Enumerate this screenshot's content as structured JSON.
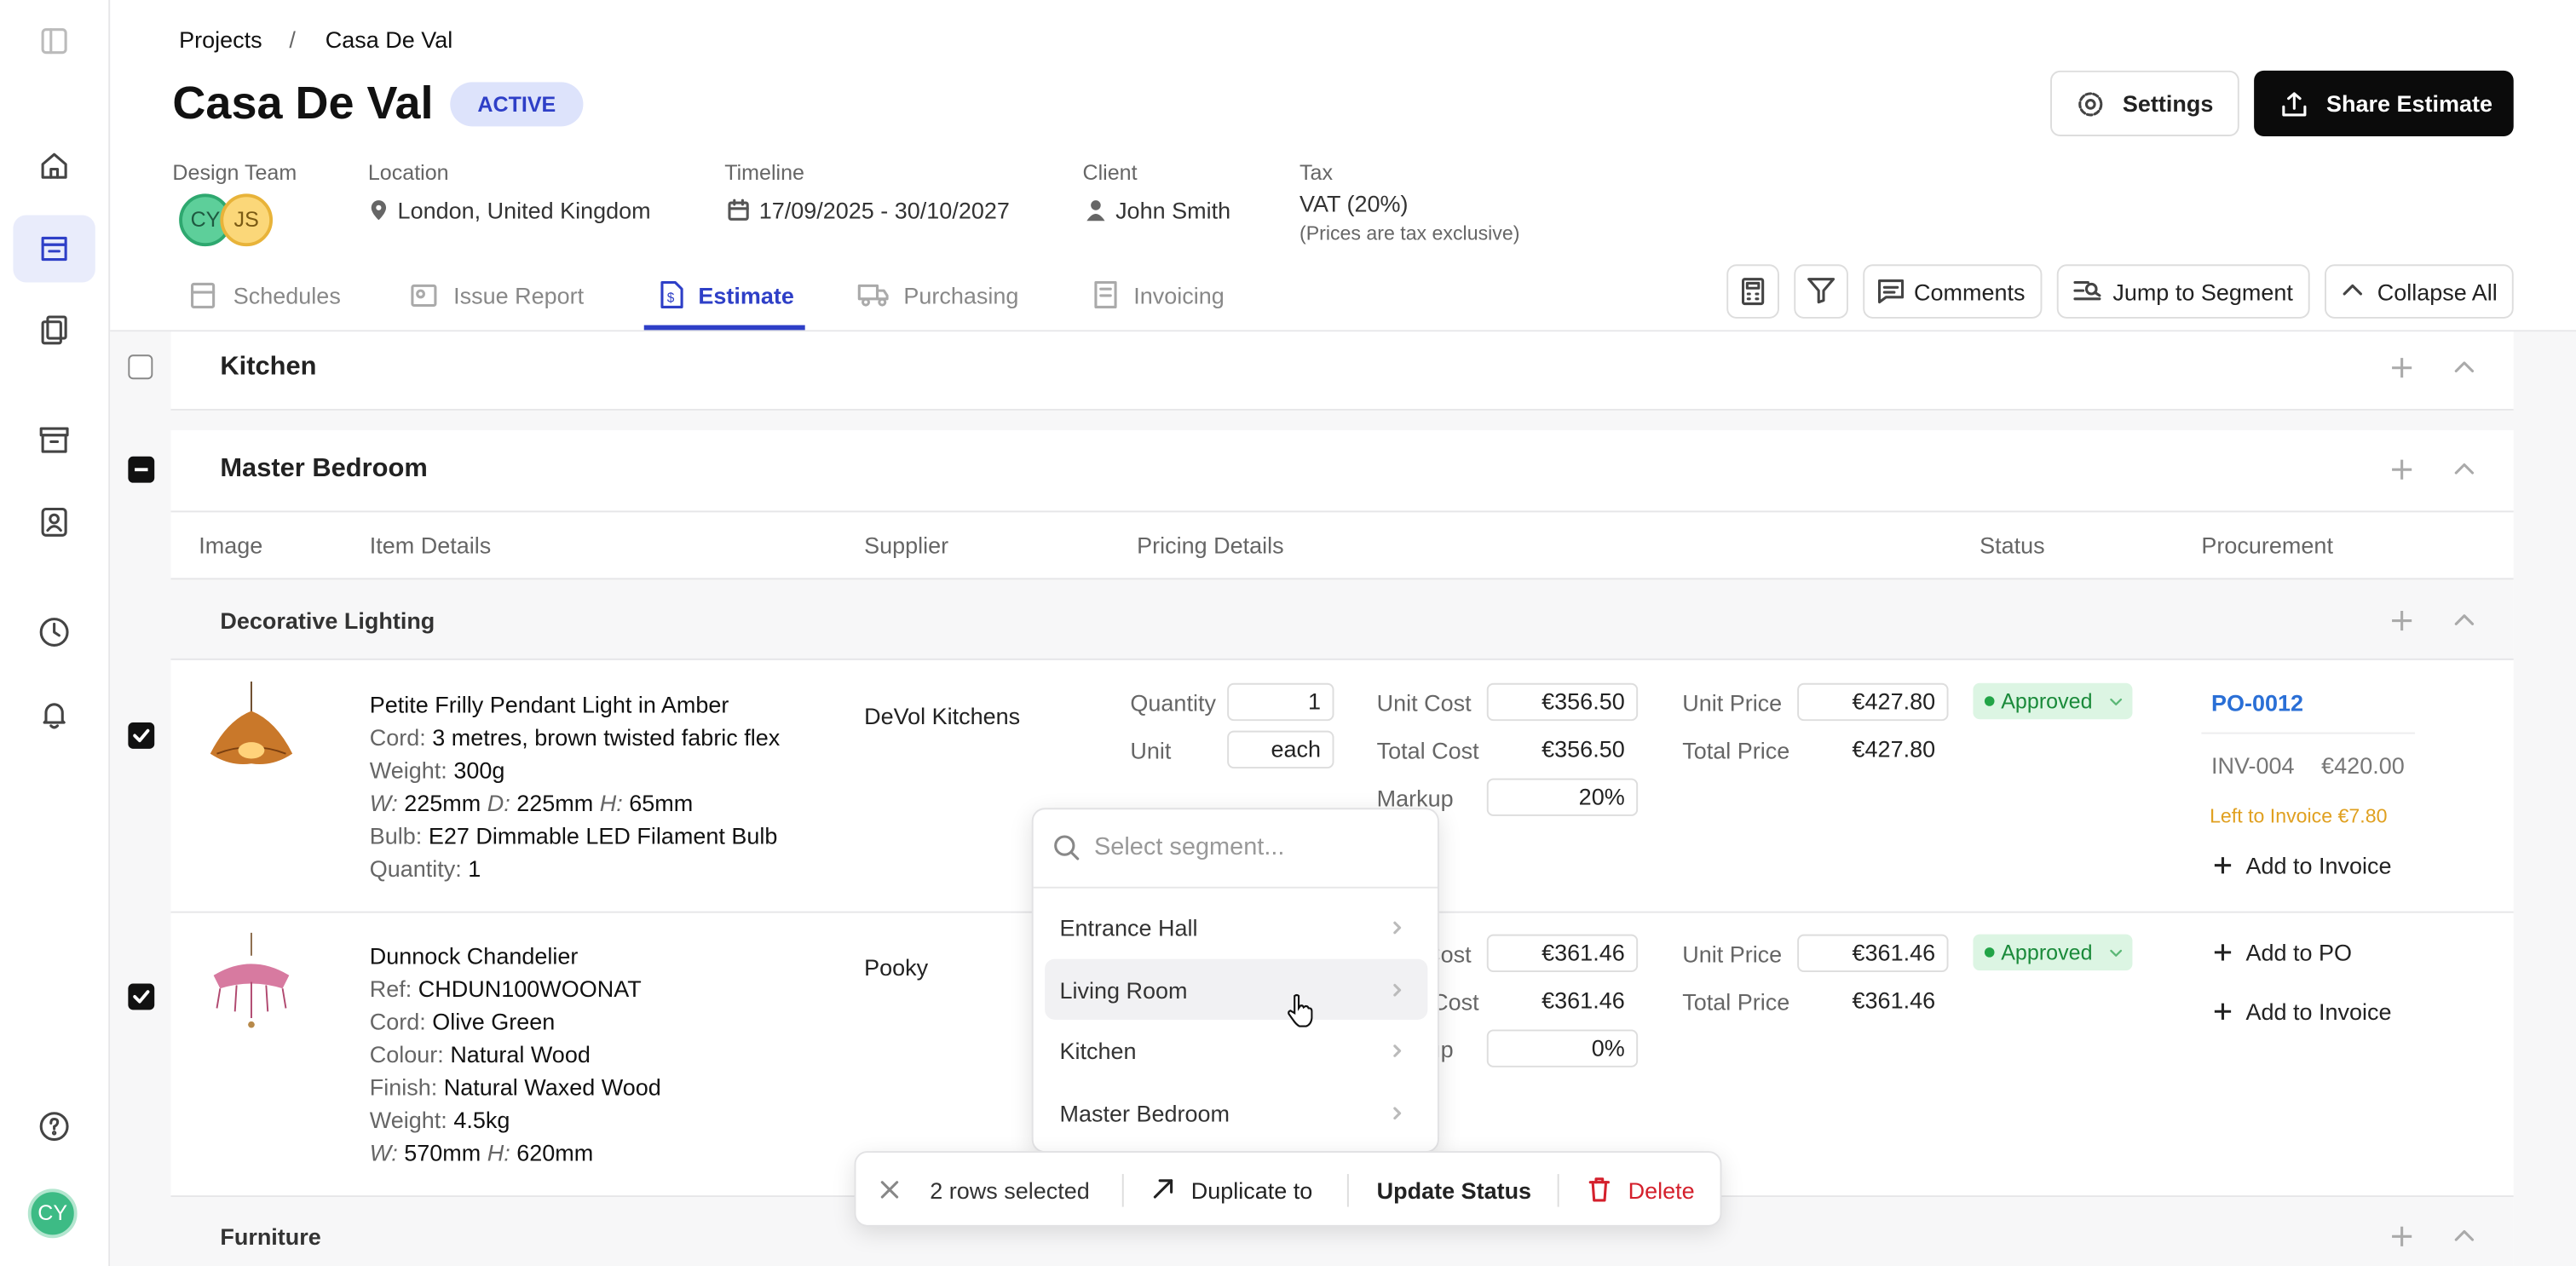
{
  "breadcrumb": [
    "Projects",
    "Casa De Val"
  ],
  "header": {
    "title": "Casa De Val",
    "status": "ACTIVE",
    "settings": "Settings",
    "share": "Share Estimate"
  },
  "meta": {
    "team_label": "Design Team",
    "team": [
      "CY",
      "JS"
    ],
    "location_label": "Location",
    "location": "London, United Kingdom",
    "timeline_label": "Timeline",
    "timeline": "17/09/2025 - 30/10/2027",
    "client_label": "Client",
    "client": "John Smith",
    "tax_label": "Tax",
    "tax": "VAT (20%)",
    "tax_note": "(Prices are tax exclusive)"
  },
  "tabs": [
    "Schedules",
    "Issue Report",
    "Estimate",
    "Purchasing",
    "Invoicing"
  ],
  "toolbar": [
    "Comments",
    "Jump to Segment",
    "Collapse All"
  ],
  "sections": [
    "Kitchen",
    "Master Bedroom"
  ],
  "columns": [
    "Image",
    "Item Details",
    "Supplier",
    "Pricing Details",
    "Status",
    "Procurement"
  ],
  "groups": [
    "Decorative Lighting",
    "Furniture"
  ],
  "pricing_labels": [
    "Quantity",
    "Unit",
    "Unit Cost",
    "Total Cost",
    "Markup",
    "Unit Price",
    "Total Price"
  ],
  "items": [
    {
      "name": "Petite Frilly Pendant Light in Amber",
      "details": [
        [
          [
            "Cord:",
            "3 metres, brown twisted fabric flex"
          ]
        ],
        [
          [
            "Weight:",
            "300g"
          ]
        ],
        [
          [
            "W:",
            "225mm"
          ],
          [
            "D:",
            "225mm"
          ],
          [
            "H:",
            "65mm"
          ]
        ],
        [
          [
            "Bulb:",
            "E27 Dimmable LED Filament Bulb"
          ]
        ],
        [
          [
            "Quantity:",
            "1"
          ]
        ]
      ],
      "supplier": "DeVol Kitchens",
      "pricing": {
        "quantity": "1",
        "unit": "each",
        "unit_cost": "€356.50",
        "total_cost": "€356.50",
        "markup": "20%",
        "unit_price": "€427.80",
        "total_price": "€427.80"
      },
      "status": "Approved",
      "procurement": {
        "po": "PO-0012",
        "invoice": "INV-004",
        "invoice_amount": "€420.00",
        "left_to_invoice": "Left to Invoice €7.80",
        "actions": [
          "Add to Invoice"
        ]
      }
    },
    {
      "name": "Dunnock Chandelier",
      "details": [
        [
          [
            "Ref:",
            "CHDUN100WOONAT"
          ]
        ],
        [
          [
            "Cord:",
            "Olive Green"
          ]
        ],
        [
          [
            "Colour:",
            "Natural Wood"
          ]
        ],
        [
          [
            "Finish:",
            "Natural Waxed Wood"
          ]
        ],
        [
          [
            "Weight:",
            "4.5kg"
          ]
        ],
        [
          [
            "W:",
            "570mm"
          ],
          [
            "H:",
            "620mm"
          ]
        ]
      ],
      "supplier": "Pooky",
      "pricing": {
        "unit_cost": "€361.46",
        "total_cost": "€361.46",
        "markup": "0%",
        "unit_price": "€361.46",
        "total_price": "€361.46"
      },
      "status": "Approved",
      "procurement": {
        "actions": [
          "Add to PO",
          "Add to Invoice"
        ]
      }
    }
  ],
  "dropdown": {
    "placeholder": "Select segment...",
    "options": [
      "Entrance Hall",
      "Living Room",
      "Kitchen",
      "Master Bedroom"
    ]
  },
  "selection_bar": {
    "count": "2 rows selected",
    "duplicate": "Duplicate to",
    "update": "Update Status",
    "delete": "Delete"
  },
  "user_avatar": "CY"
}
